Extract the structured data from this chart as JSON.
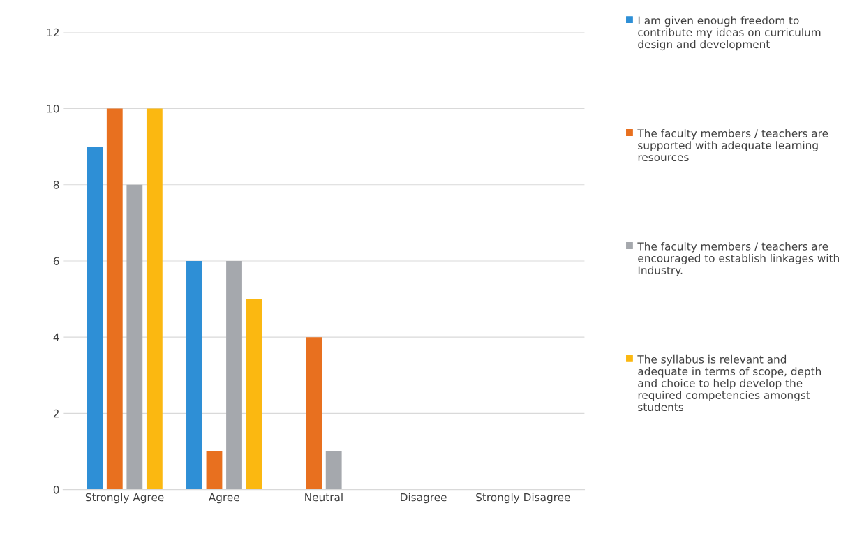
{
  "chart_data": {
    "type": "bar",
    "categories": [
      "Strongly Agree",
      "Agree",
      "Neutral",
      "Disagree",
      "Strongly Disagree"
    ],
    "series": [
      {
        "name": "I am given enough freedom to contribute my ideas on curriculum design and development",
        "color": "#2e8fd6",
        "values": [
          9,
          6,
          0,
          0,
          0
        ]
      },
      {
        "name": "The faculty members / teachers are supported with adequate learning resources",
        "color": "#e8701f",
        "values": [
          10,
          1,
          4,
          0,
          0
        ]
      },
      {
        "name": "The faculty members / teachers are encouraged to establish linkages with Industry.",
        "color": "#a5a8ad",
        "values": [
          8,
          6,
          1,
          0,
          0
        ]
      },
      {
        "name": "The syllabus is relevant and adequate in terms of scope, depth and choice to help develop the required competencies amongst students",
        "color": "#fbb811",
        "values": [
          10,
          5,
          0,
          0,
          0
        ]
      }
    ],
    "ylim": [
      0,
      12
    ],
    "yticks": [
      0,
      2,
      4,
      6,
      8,
      10,
      12
    ],
    "grid": "y",
    "legend": "right"
  }
}
